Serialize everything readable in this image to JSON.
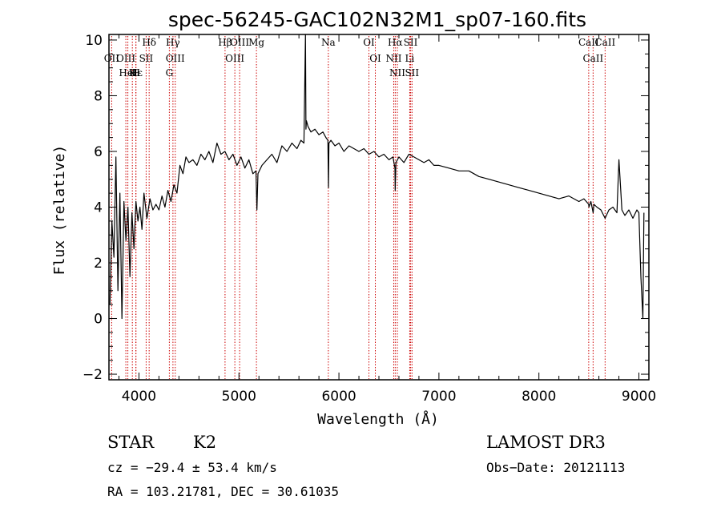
{
  "chart_data": {
    "type": "line",
    "title": "spec-56245-GAC102N32M1_sp07-160.fits",
    "xlabel": "Wavelength (Å)",
    "ylabel": "Flux (relative)",
    "xlim": [
      3700,
      9100
    ],
    "ylim": [
      -2.2,
      10.2
    ],
    "xticks": [
      4000,
      5000,
      6000,
      7000,
      8000,
      9000
    ],
    "xtick_labels": [
      "4000",
      "5000",
      "6000",
      "7000",
      "8000",
      "9000"
    ],
    "yticks": [
      -2,
      0,
      2,
      4,
      6,
      8,
      10
    ],
    "ytick_labels": [
      "−2",
      "0",
      "2",
      "4",
      "6",
      "8",
      "10"
    ],
    "grid": false,
    "series": [
      {
        "name": "flux",
        "color": "#000000",
        "x": [
          3710,
          3730,
          3750,
          3770,
          3790,
          3810,
          3830,
          3850,
          3870,
          3890,
          3910,
          3930,
          3950,
          3970,
          3990,
          4010,
          4030,
          4050,
          4080,
          4110,
          4140,
          4170,
          4200,
          4230,
          4260,
          4290,
          4320,
          4350,
          4380,
          4410,
          4440,
          4470,
          4500,
          4540,
          4580,
          4620,
          4660,
          4700,
          4740,
          4780,
          4820,
          4860,
          4900,
          4940,
          4980,
          5020,
          5060,
          5100,
          5140,
          5170,
          5180,
          5190,
          5230,
          5280,
          5330,
          5380,
          5430,
          5480,
          5530,
          5580,
          5620,
          5650,
          5665,
          5670,
          5675,
          5690,
          5720,
          5760,
          5800,
          5840,
          5870,
          5890,
          5895,
          5900,
          5920,
          5960,
          6000,
          6050,
          6100,
          6150,
          6200,
          6250,
          6300,
          6350,
          6400,
          6450,
          6500,
          6540,
          6560,
          6563,
          6570,
          6600,
          6650,
          6700,
          6750,
          6800,
          6850,
          6900,
          6950,
          7000,
          7100,
          7200,
          7300,
          7400,
          7500,
          7600,
          7700,
          7800,
          7900,
          8000,
          8100,
          8200,
          8300,
          8400,
          8450,
          8498,
          8500,
          8520,
          8542,
          8550,
          8580,
          8620,
          8662,
          8700,
          8740,
          8780,
          8800,
          8830,
          8860,
          8900,
          8940,
          8980,
          9000,
          9020,
          9040,
          9050
        ],
        "y": [
          0.5,
          3.5,
          2.2,
          5.8,
          1.0,
          4.5,
          0.0,
          4.2,
          2.8,
          4.0,
          1.5,
          3.8,
          2.5,
          4.2,
          3.5,
          4.0,
          3.2,
          4.5,
          3.6,
          4.3,
          3.9,
          4.1,
          3.9,
          4.4,
          4.0,
          4.6,
          4.2,
          4.8,
          4.5,
          5.5,
          5.2,
          5.8,
          5.6,
          5.7,
          5.5,
          5.9,
          5.7,
          6.0,
          5.6,
          6.3,
          5.9,
          6.0,
          5.7,
          5.9,
          5.5,
          5.8,
          5.4,
          5.7,
          5.2,
          5.3,
          3.9,
          5.2,
          5.5,
          5.7,
          5.9,
          5.6,
          6.2,
          6.0,
          6.3,
          6.1,
          6.4,
          6.3,
          10.2,
          6.8,
          7.1,
          6.9,
          6.7,
          6.8,
          6.6,
          6.7,
          6.5,
          6.4,
          4.7,
          6.3,
          6.4,
          6.2,
          6.3,
          6.0,
          6.2,
          6.1,
          6.0,
          6.1,
          5.9,
          6.0,
          5.8,
          5.9,
          5.7,
          5.8,
          5.4,
          4.6,
          5.6,
          5.8,
          5.6,
          5.9,
          5.8,
          5.7,
          5.6,
          5.7,
          5.5,
          5.5,
          5.4,
          5.3,
          5.3,
          5.1,
          5.0,
          4.9,
          4.8,
          4.7,
          4.6,
          4.5,
          4.4,
          4.3,
          4.4,
          4.2,
          4.3,
          4.1,
          4.0,
          4.2,
          3.8,
          4.1,
          4.0,
          3.9,
          3.6,
          3.9,
          4.0,
          3.8,
          5.7,
          3.9,
          3.7,
          3.9,
          3.6,
          3.9,
          3.8,
          1.5,
          0.0,
          3.8
        ]
      }
    ],
    "line_markers": [
      {
        "label": "Hδ",
        "x": 4102
      },
      {
        "label": "OII",
        "x": 3727
      },
      {
        "label": "OIII",
        "x": 3869
      },
      {
        "label": "K",
        "x": 3934
      },
      {
        "label": "HeI",
        "x": 3889
      },
      {
        "label": "H",
        "x": 3969
      },
      {
        "label": "Hε",
        "x": 3970
      },
      {
        "label": "SII",
        "x": 4072
      },
      {
        "label": "Hγ",
        "x": 4340
      },
      {
        "label": "OIII",
        "x": 4363
      },
      {
        "label": "G",
        "x": 4304
      },
      {
        "label": "Hβ",
        "x": 4861
      },
      {
        "label": "OIII",
        "x": 4959
      },
      {
        "label": "OIII",
        "x": 5007
      },
      {
        "label": "Mg",
        "x": 5175
      },
      {
        "label": "Na",
        "x": 5894
      },
      {
        "label": "OI",
        "x": 6300
      },
      {
        "label": "OI",
        "x": 6364
      },
      {
        "label": "Hα",
        "x": 6563
      },
      {
        "label": "NII",
        "x": 6548
      },
      {
        "label": "NII",
        "x": 6584
      },
      {
        "label": "SII",
        "x": 6717
      },
      {
        "label": "Li",
        "x": 6708
      },
      {
        "label": "SII",
        "x": 6731
      },
      {
        "label": "CaII",
        "x": 8498
      },
      {
        "label": "CaII",
        "x": 8542
      },
      {
        "label": "CaII",
        "x": 8662
      }
    ]
  },
  "info": {
    "object_class": "STAR",
    "subclass": "K2",
    "survey": "LAMOST DR3",
    "redshift": "cz = −29.4 ± 53.4 km/s",
    "obs_date": "Obs−Date: 20121113",
    "coords": "RA = 103.21781, DEC =  30.61035"
  },
  "colors": {
    "marker_line": "#cc0000",
    "axis": "#000000",
    "spectrum": "#000000"
  }
}
